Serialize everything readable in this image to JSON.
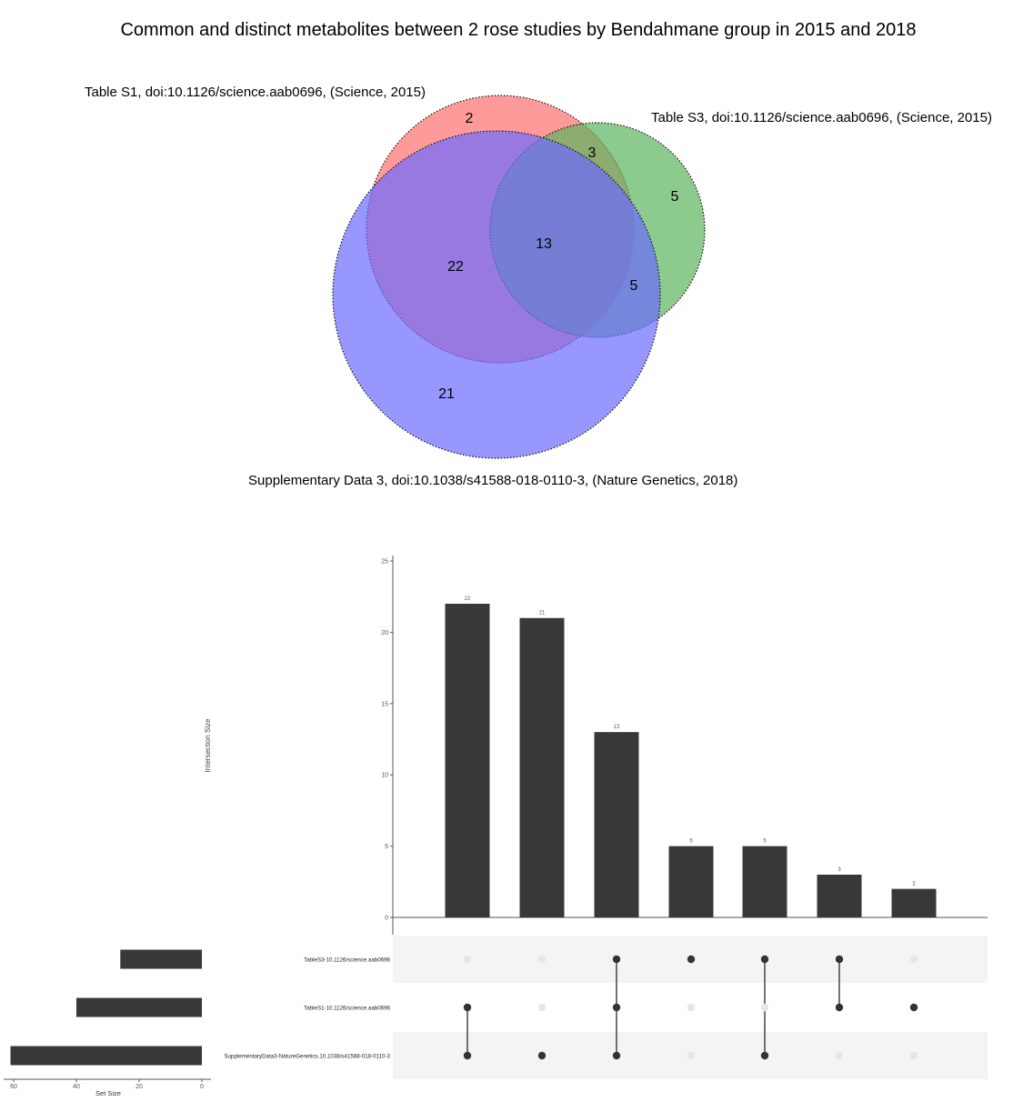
{
  "title": "Common and distinct metabolites between 2 rose studies by Bendahmane group in 2015 and 2018",
  "venn": {
    "sets": [
      {
        "name": "Table S1, doi:10.1126/science.aab0696, (Science, 2015)",
        "color": "#ff6f6f"
      },
      {
        "name": "Table S3, doi:10.1126/science.aab0696, (Science, 2015)",
        "color": "#5db45d"
      },
      {
        "name": "Supplementary Data 3, doi:10.1038/s41588-018-0110-3, (Nature Genetics, 2018)",
        "color": "#6b6bff"
      }
    ],
    "regions": [
      {
        "sets": [
          "S1"
        ],
        "value": "2"
      },
      {
        "sets": [
          "S1",
          "S3"
        ],
        "value": "3"
      },
      {
        "sets": [
          "S3"
        ],
        "value": "5"
      },
      {
        "sets": [
          "S1",
          "S3",
          "SD3"
        ],
        "value": "13"
      },
      {
        "sets": [
          "S1",
          "SD3"
        ],
        "value": "22"
      },
      {
        "sets": [
          "S3",
          "SD3"
        ],
        "value": "5"
      },
      {
        "sets": [
          "SD3"
        ],
        "value": "21"
      }
    ]
  },
  "chart_data": [
    {
      "type": "bar",
      "title": "",
      "ylabel": "Intersection Size",
      "ylim": [
        0,
        25
      ],
      "yticks": [
        "0",
        "5",
        "10",
        "15",
        "20",
        "25"
      ],
      "categories": [
        "SD3 & S1",
        "SD3",
        "SD3 & S1 & S3",
        "S3",
        "SD3 & S3",
        "S1 & S3",
        "S1"
      ],
      "values": [
        22,
        21,
        13,
        5,
        5,
        3,
        2
      ],
      "value_labels": [
        "22",
        "21",
        "13",
        "5",
        "5",
        "3",
        "2"
      ],
      "membership": [
        [
          false,
          true,
          true
        ],
        [
          false,
          false,
          true
        ],
        [
          true,
          true,
          true
        ],
        [
          true,
          false,
          false
        ],
        [
          true,
          false,
          true
        ],
        [
          true,
          true,
          false
        ],
        [
          false,
          true,
          false
        ]
      ],
      "bar_color": "#383838",
      "dot_active_color": "#333333",
      "dot_inactive_color": "#e6e6e6"
    },
    {
      "type": "bar",
      "orientation": "horizontal",
      "xlabel": "Set Size",
      "xlim": [
        0,
        62
      ],
      "xticks": [
        "60",
        "40",
        "20",
        "0"
      ],
      "categories": [
        "TableS3-10.1126/science.aab0696",
        "TableS1-10.1126/science.aab0696",
        "SupplementaryData3-NatureGenetics.10.1038/s41588-018-0110-3"
      ],
      "values": [
        26,
        40,
        61
      ]
    }
  ]
}
